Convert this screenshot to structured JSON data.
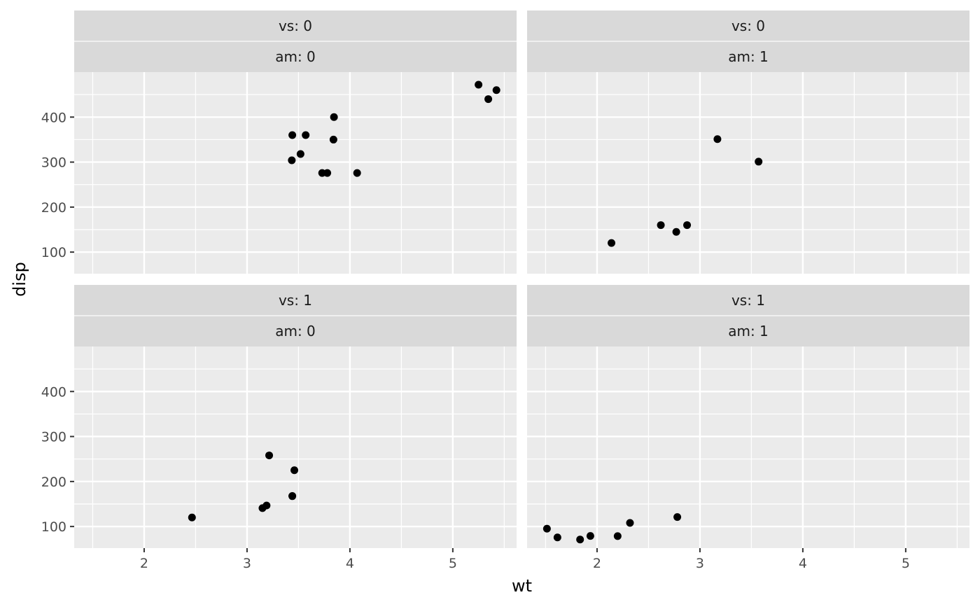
{
  "chart_data": {
    "type": "scatter",
    "facet_type": "grid",
    "xlabel": "wt",
    "ylabel": "disp",
    "xlim": [
      1.32,
      5.62
    ],
    "ylim": [
      52,
      500
    ],
    "x_ticks": [
      2,
      3,
      4,
      5
    ],
    "y_ticks": [
      100,
      200,
      300,
      400
    ],
    "grid": true,
    "point_color": "#000000",
    "panel_background": "#ebebeb",
    "strip_background": "#d9d9d9",
    "panels": [
      {
        "strip_labels": [
          "vs: 0",
          "am: 0"
        ],
        "points": [
          {
            "x": 3.44,
            "y": 360
          },
          {
            "x": 3.57,
            "y": 360
          },
          {
            "x": 4.07,
            "y": 275.8
          },
          {
            "x": 3.73,
            "y": 275.8
          },
          {
            "x": 3.78,
            "y": 275.8
          },
          {
            "x": 5.25,
            "y": 472
          },
          {
            "x": 5.424,
            "y": 460
          },
          {
            "x": 5.345,
            "y": 440
          },
          {
            "x": 3.52,
            "y": 318
          },
          {
            "x": 3.435,
            "y": 304
          },
          {
            "x": 3.84,
            "y": 350
          },
          {
            "x": 3.845,
            "y": 400
          }
        ]
      },
      {
        "strip_labels": [
          "vs: 0",
          "am: 1"
        ],
        "points": [
          {
            "x": 2.62,
            "y": 160
          },
          {
            "x": 2.875,
            "y": 160
          },
          {
            "x": 2.14,
            "y": 120.3
          },
          {
            "x": 3.17,
            "y": 351
          },
          {
            "x": 2.77,
            "y": 145
          },
          {
            "x": 3.57,
            "y": 301
          }
        ]
      },
      {
        "strip_labels": [
          "vs: 1",
          "am: 0"
        ],
        "points": [
          {
            "x": 3.215,
            "y": 258
          },
          {
            "x": 3.46,
            "y": 225
          },
          {
            "x": 3.19,
            "y": 146.7
          },
          {
            "x": 3.15,
            "y": 140.8
          },
          {
            "x": 3.44,
            "y": 167.6
          },
          {
            "x": 3.44,
            "y": 167.6
          },
          {
            "x": 2.465,
            "y": 120.1
          }
        ]
      },
      {
        "strip_labels": [
          "vs: 1",
          "am: 1"
        ],
        "points": [
          {
            "x": 2.32,
            "y": 108
          },
          {
            "x": 2.2,
            "y": 78.7
          },
          {
            "x": 1.615,
            "y": 75.7
          },
          {
            "x": 1.835,
            "y": 71.1
          },
          {
            "x": 1.935,
            "y": 79
          },
          {
            "x": 1.513,
            "y": 95.1
          },
          {
            "x": 2.78,
            "y": 121
          }
        ]
      }
    ]
  }
}
